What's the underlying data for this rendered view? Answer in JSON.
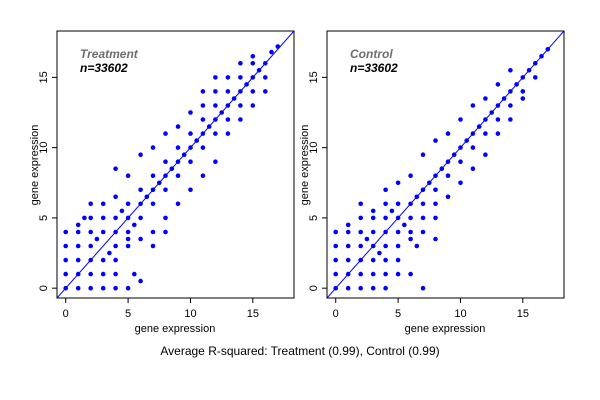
{
  "colors": {
    "points": "#0000ff",
    "identity_line": "#0000ff",
    "frame": "#000000",
    "label_grey": "#6e6e6e"
  },
  "caption": "Average R-squared: Treatment (0.99), Control (0.99)",
  "chart_data": [
    {
      "type": "scatter",
      "label": "Treatment",
      "count_label": "n=33602",
      "xlabel": "gene expression",
      "ylabel": "gene expression",
      "xlim": [
        -0.7,
        18.3
      ],
      "ylim": [
        -0.7,
        18.3
      ],
      "xticks": [
        "0",
        "5",
        "10",
        "15"
      ],
      "yticks": [
        "0",
        "5",
        "10",
        "15"
      ],
      "identity_line": true,
      "r_squared": 0.99,
      "points": [
        [
          0,
          0
        ],
        [
          0,
          1
        ],
        [
          0,
          2
        ],
        [
          0,
          3
        ],
        [
          0,
          4
        ],
        [
          1,
          0
        ],
        [
          1,
          1
        ],
        [
          1,
          2
        ],
        [
          1,
          3
        ],
        [
          1,
          4
        ],
        [
          2,
          0
        ],
        [
          2,
          1
        ],
        [
          2,
          2
        ],
        [
          2,
          3
        ],
        [
          3,
          0
        ],
        [
          3,
          1
        ],
        [
          3,
          2
        ],
        [
          4,
          0
        ],
        [
          4,
          1
        ],
        [
          4,
          2
        ],
        [
          5,
          0
        ],
        [
          5.5,
          1
        ],
        [
          6,
          0.5
        ],
        [
          1,
          4.5
        ],
        [
          1.5,
          5
        ],
        [
          2,
          5
        ],
        [
          2,
          4
        ],
        [
          3,
          4
        ],
        [
          3,
          5
        ],
        [
          4,
          5
        ],
        [
          4,
          4
        ],
        [
          4,
          3
        ],
        [
          5,
          5
        ],
        [
          5,
          4
        ],
        [
          5,
          3
        ],
        [
          5,
          6
        ],
        [
          6,
          5
        ],
        [
          6,
          6
        ],
        [
          6,
          7
        ],
        [
          7,
          6
        ],
        [
          7,
          7
        ],
        [
          7,
          8
        ],
        [
          8,
          7
        ],
        [
          8,
          8
        ],
        [
          8,
          9
        ],
        [
          9,
          8
        ],
        [
          9,
          9
        ],
        [
          9,
          10
        ],
        [
          10,
          9
        ],
        [
          10,
          10
        ],
        [
          10,
          11
        ],
        [
          11,
          10
        ],
        [
          11,
          11
        ],
        [
          11,
          12
        ],
        [
          12,
          11
        ],
        [
          12,
          12
        ],
        [
          12,
          13
        ],
        [
          13,
          12
        ],
        [
          13,
          13
        ],
        [
          13,
          14
        ],
        [
          14,
          13
        ],
        [
          14,
          14
        ],
        [
          14,
          15
        ],
        [
          15,
          14
        ],
        [
          15,
          15
        ],
        [
          15,
          16
        ],
        [
          16,
          15
        ],
        [
          16,
          16
        ],
        [
          16.5,
          16.8
        ],
        [
          17,
          17.2
        ],
        [
          4,
          8.5
        ],
        [
          5,
          8
        ],
        [
          6,
          9.5
        ],
        [
          7,
          10
        ],
        [
          8,
          11
        ],
        [
          9,
          11.5
        ],
        [
          10,
          12.5
        ],
        [
          11,
          13
        ],
        [
          12,
          14
        ],
        [
          5,
          3.5
        ],
        [
          7,
          4
        ],
        [
          8,
          5
        ],
        [
          9,
          6
        ],
        [
          10,
          7
        ],
        [
          11,
          8
        ],
        [
          12,
          9
        ],
        [
          13,
          11
        ],
        [
          14,
          12
        ],
        [
          15,
          13
        ],
        [
          16,
          14
        ],
        [
          7,
          3
        ],
        [
          8,
          4
        ],
        [
          6,
          3.5
        ],
        [
          3,
          6
        ],
        [
          4,
          6.5
        ],
        [
          2,
          6
        ],
        [
          11,
          14
        ],
        [
          13,
          15
        ],
        [
          14,
          16
        ],
        [
          15,
          16.5
        ],
        [
          12,
          15
        ],
        [
          2.5,
          3.5
        ],
        [
          3.5,
          2.5
        ],
        [
          4.5,
          5.5
        ],
        [
          5.5,
          4.5
        ],
        [
          6.5,
          6.5
        ],
        [
          7.5,
          7.5
        ],
        [
          8.5,
          8.5
        ],
        [
          9.5,
          9.5
        ],
        [
          10.5,
          10.5
        ],
        [
          11.5,
          11.5
        ],
        [
          12.5,
          12.5
        ],
        [
          13.5,
          13.5
        ],
        [
          14.5,
          14.5
        ],
        [
          15.5,
          15.5
        ]
      ]
    },
    {
      "type": "scatter",
      "label": "Control",
      "count_label": "n=33602",
      "xlabel": "gene expression",
      "ylabel": "gene expression",
      "xlim": [
        -0.7,
        18.3
      ],
      "ylim": [
        -0.7,
        18.3
      ],
      "xticks": [
        "0",
        "5",
        "10",
        "15"
      ],
      "yticks": [
        "0",
        "5",
        "10",
        "15"
      ],
      "identity_line": true,
      "r_squared": 0.99,
      "points": [
        [
          0,
          0
        ],
        [
          0,
          1
        ],
        [
          0,
          2
        ],
        [
          0,
          3
        ],
        [
          0,
          4
        ],
        [
          1,
          0
        ],
        [
          1,
          1
        ],
        [
          1,
          2
        ],
        [
          1,
          3
        ],
        [
          1,
          4
        ],
        [
          2,
          0
        ],
        [
          2,
          1
        ],
        [
          2,
          2
        ],
        [
          2,
          3
        ],
        [
          2,
          4
        ],
        [
          3,
          0
        ],
        [
          3,
          1
        ],
        [
          3,
          2
        ],
        [
          3,
          3
        ],
        [
          4,
          0
        ],
        [
          4,
          1
        ],
        [
          4,
          2
        ],
        [
          4,
          3
        ],
        [
          5,
          1
        ],
        [
          5,
          2
        ],
        [
          6,
          1
        ],
        [
          7,
          0
        ],
        [
          1,
          4.5
        ],
        [
          2,
          5
        ],
        [
          3,
          4
        ],
        [
          3,
          5
        ],
        [
          4,
          4
        ],
        [
          4,
          5
        ],
        [
          5,
          5
        ],
        [
          5,
          4
        ],
        [
          5,
          3
        ],
        [
          5,
          6
        ],
        [
          6,
          5
        ],
        [
          6,
          6
        ],
        [
          6,
          4
        ],
        [
          7,
          6
        ],
        [
          7,
          7
        ],
        [
          7,
          5
        ],
        [
          8,
          7
        ],
        [
          8,
          8
        ],
        [
          8,
          6
        ],
        [
          9,
          8
        ],
        [
          9,
          9
        ],
        [
          10,
          9
        ],
        [
          10,
          10
        ],
        [
          11,
          10
        ],
        [
          11,
          11
        ],
        [
          12,
          11
        ],
        [
          12,
          12
        ],
        [
          13,
          12
        ],
        [
          13,
          13
        ],
        [
          14,
          13
        ],
        [
          14,
          14
        ],
        [
          15,
          14
        ],
        [
          15,
          15
        ],
        [
          16,
          15
        ],
        [
          16,
          16
        ],
        [
          16.5,
          16.5
        ],
        [
          17,
          17
        ],
        [
          4,
          7
        ],
        [
          5,
          7.5
        ],
        [
          6,
          8
        ],
        [
          7,
          9.5
        ],
        [
          8,
          10.5
        ],
        [
          9,
          11
        ],
        [
          10,
          12
        ],
        [
          11,
          13
        ],
        [
          12,
          13.5
        ],
        [
          13,
          14.5
        ],
        [
          14,
          15.5
        ],
        [
          6,
          3.5
        ],
        [
          7,
          4
        ],
        [
          8,
          5
        ],
        [
          9,
          6.5
        ],
        [
          10,
          7.5
        ],
        [
          11,
          8.5
        ],
        [
          12,
          9.5
        ],
        [
          13,
          11
        ],
        [
          14,
          12
        ],
        [
          15,
          13.5
        ],
        [
          6.5,
          3
        ],
        [
          8,
          3.5
        ],
        [
          4,
          6
        ],
        [
          3,
          5.5
        ],
        [
          2,
          6
        ],
        [
          2.5,
          3.5
        ],
        [
          3.5,
          2.5
        ],
        [
          4.5,
          5.5
        ],
        [
          5.5,
          4.5
        ],
        [
          6.5,
          6.5
        ],
        [
          7.5,
          7.5
        ],
        [
          8.5,
          8.5
        ],
        [
          9.5,
          9.5
        ],
        [
          10.5,
          10.5
        ],
        [
          11.5,
          11.5
        ],
        [
          12.5,
          12.5
        ],
        [
          13.5,
          13.5
        ],
        [
          14.5,
          14.5
        ],
        [
          15.5,
          15.5
        ]
      ]
    }
  ]
}
